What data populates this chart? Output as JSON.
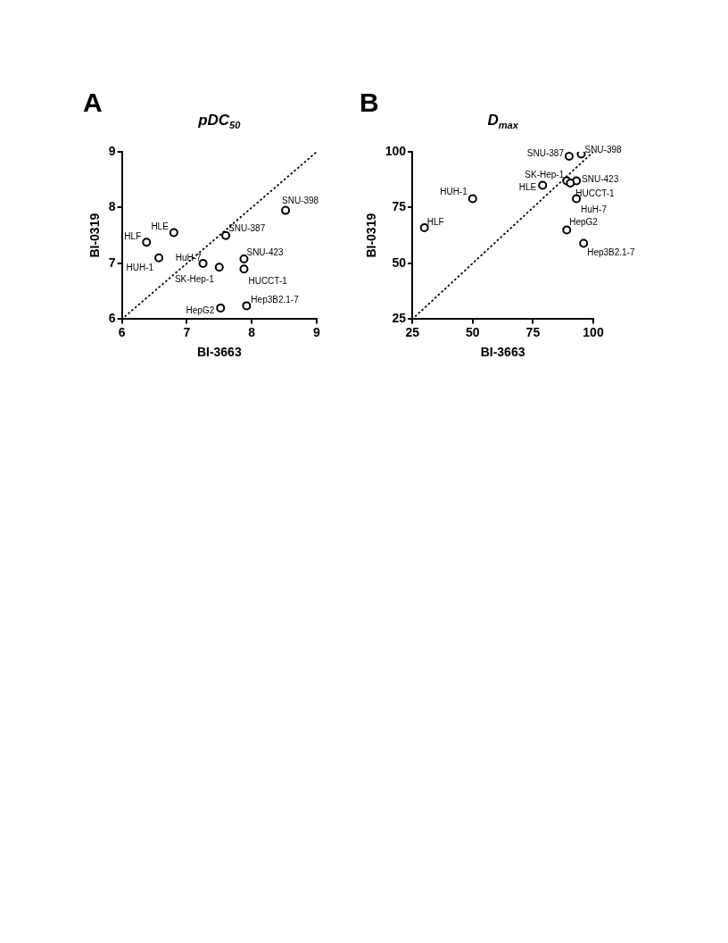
{
  "chart_data": [
    {
      "type": "scatter",
      "title": "pDC$_{50}$",
      "xlabel": "BI-3663",
      "ylabel": "BI-0319",
      "xlim": [
        6,
        9
      ],
      "xticks": [
        6,
        7,
        8,
        9
      ],
      "ylim": [
        6,
        9
      ],
      "yticks": [
        6,
        7,
        8,
        9
      ],
      "grid": false,
      "legend": false,
      "series": [
        {
          "marker": "circle",
          "color": "#000000",
          "x": [
            6.38,
            6.8,
            6.57,
            7.25,
            7.5,
            7.6,
            8.52,
            7.88,
            7.88,
            7.52,
            7.92
          ],
          "values": [
            7.38,
            7.55,
            7.1,
            7.0,
            6.93,
            7.5,
            7.95,
            7.08,
            6.9,
            6.2,
            6.24
          ]
        },
        {
          "type": "line",
          "marker": "none",
          "color": "#000000",
          "line_style": "dotted",
          "x": [
            6,
            9
          ],
          "values": [
            6,
            9
          ]
        }
      ],
      "annotations": [
        "A",
        {
          "text": "HLF",
          "x": 6.38,
          "y": 7.38
        },
        {
          "text": "HLE",
          "x": 6.8,
          "y": 7.55
        },
        {
          "text": "HUH-1",
          "x": 6.57,
          "y": 7.1
        },
        {
          "text": "HuH-7",
          "x": 7.25,
          "y": 7.0
        },
        {
          "text": "SK-Hep-1",
          "x": 7.5,
          "y": 6.93
        },
        {
          "text": "SNU-387",
          "x": 7.6,
          "y": 7.5
        },
        {
          "text": "SNU-398",
          "x": 8.52,
          "y": 7.95
        },
        {
          "text": "SNU-423",
          "x": 7.88,
          "y": 7.08
        },
        {
          "text": "HUCCT-1",
          "x": 7.88,
          "y": 6.9
        },
        {
          "text": "HepG2",
          "x": 7.52,
          "y": 6.2
        },
        {
          "text": "Hep3B2.1-7",
          "x": 7.92,
          "y": 6.24
        }
      ]
    },
    {
      "type": "scatter",
      "title": "D$_{max}$",
      "xlabel": "BI-3663",
      "ylabel": "BI-0319",
      "xlim": [
        25,
        100
      ],
      "xticks": [
        25,
        50,
        75,
        100
      ],
      "ylim": [
        25,
        100
      ],
      "yticks": [
        25,
        50,
        75,
        100
      ],
      "grid": false,
      "legend": false,
      "series": [
        {
          "marker": "circle",
          "color": "#000000",
          "x": [
            30,
            79,
            50,
            93,
            89,
            90,
            95,
            93,
            90.5,
            89,
            96
          ],
          "values": [
            66,
            85,
            79,
            79,
            87,
            98,
            99,
            87,
            86,
            65,
            59
          ]
        },
        {
          "type": "line",
          "marker": "none",
          "color": "#000000",
          "line_style": "dotted",
          "x": [
            25,
            100
          ],
          "values": [
            25,
            100
          ]
        }
      ],
      "annotations": [
        "B",
        {
          "text": "HLF",
          "x": 30,
          "y": 66
        },
        {
          "text": "HLE",
          "x": 79,
          "y": 85
        },
        {
          "text": "HUH-1",
          "x": 50,
          "y": 79
        },
        {
          "text": "HuH-7",
          "x": 93,
          "y": 79
        },
        {
          "text": "SK-Hep-1",
          "x": 89,
          "y": 87
        },
        {
          "text": "SNU-387",
          "x": 90,
          "y": 98
        },
        {
          "text": "SNU-398",
          "x": 95,
          "y": 99
        },
        {
          "text": "SNU-423",
          "x": 93,
          "y": 87
        },
        {
          "text": "HUCCT-1",
          "x": 90.5,
          "y": 86
        },
        {
          "text": "HepG2",
          "x": 89,
          "y": 65
        },
        {
          "text": "Hep3B2.1-7",
          "x": 96,
          "y": 59
        }
      ]
    }
  ]
}
